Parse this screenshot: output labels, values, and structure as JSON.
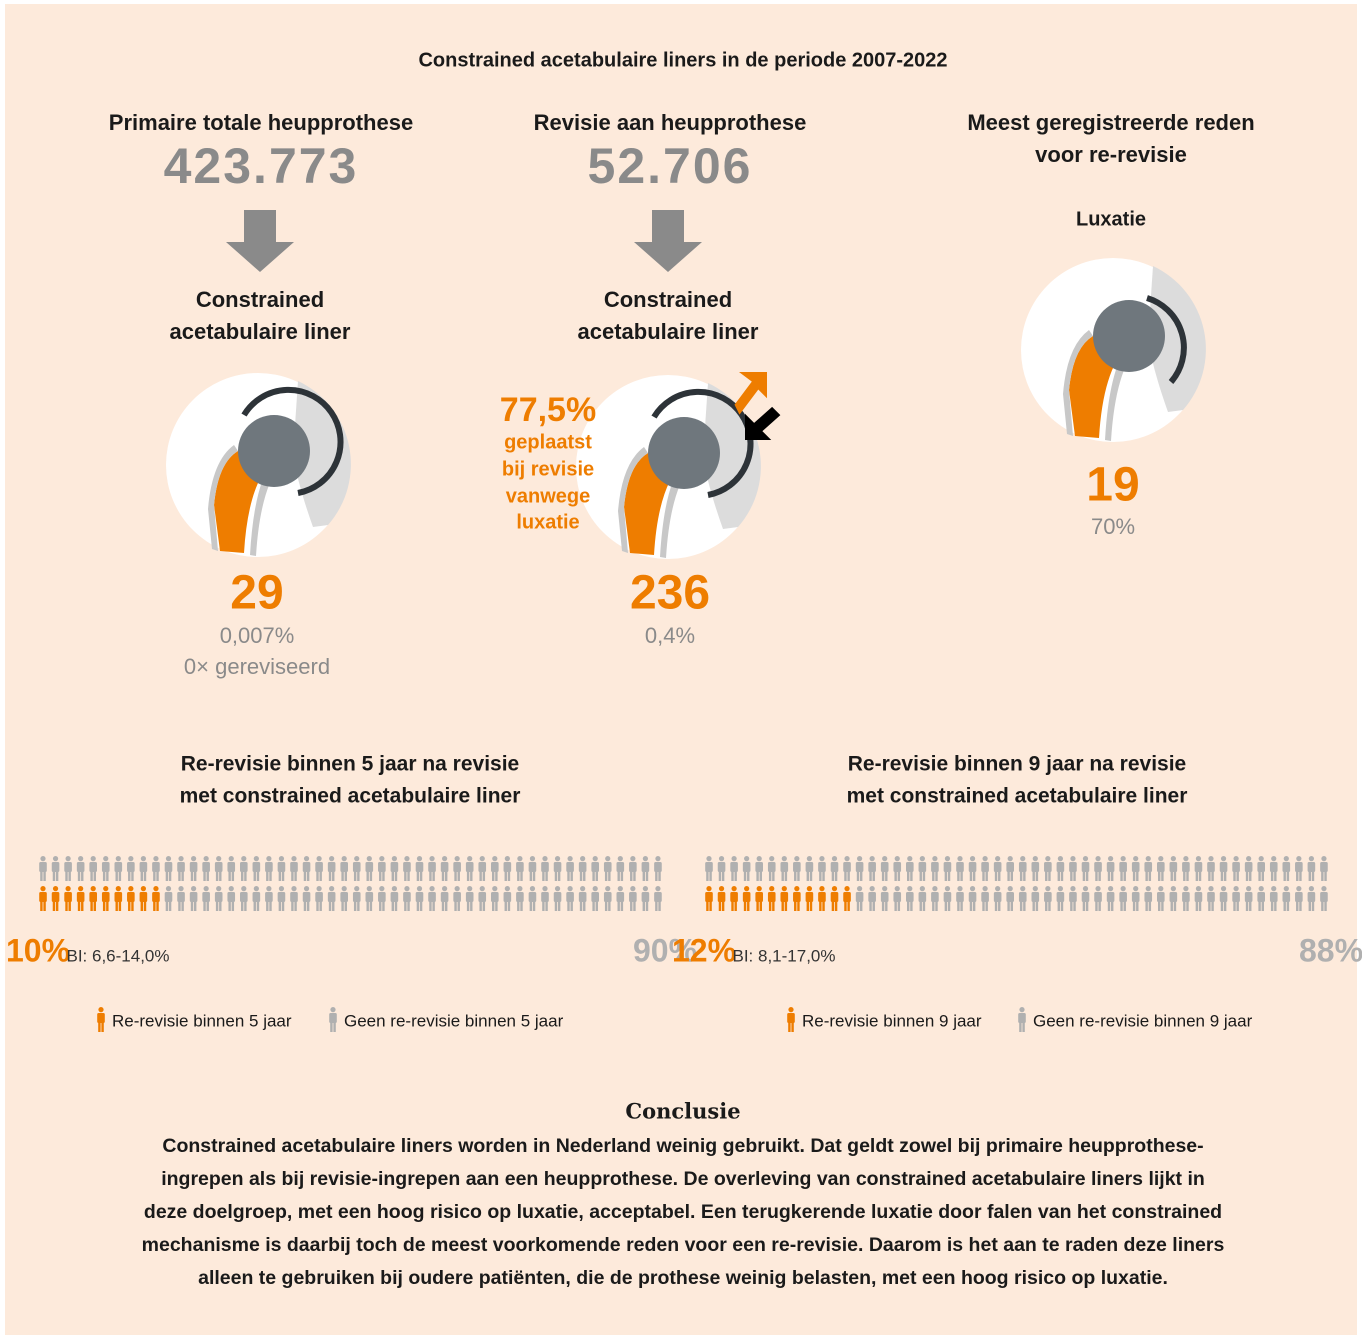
{
  "title": "Constrained acetabulaire liners in de periode 2007-2022",
  "columns": [
    {
      "heading_lines": [
        "Primaire totale heupprothese"
      ],
      "total": "423.773",
      "label_lines": [
        "Constrained",
        "acetabulaire liner"
      ],
      "count": "29",
      "stats": [
        "0,007%",
        "0× gereviseerd"
      ]
    },
    {
      "heading_lines": [
        "Revisie aan heupprothese"
      ],
      "total": "52.706",
      "label_lines": [
        "Constrained",
        "acetabulaire liner"
      ],
      "count": "236",
      "stats": [
        "0,4%"
      ],
      "callout": {
        "value": "77,5%",
        "lines": [
          "geplaatst",
          "bij revisie",
          "vanwege",
          "luxatie"
        ]
      }
    },
    {
      "heading_lines": [
        "Meest geregistreerde reden",
        "voor re-revisie"
      ],
      "reason": "Luxatie",
      "count": "19",
      "stats": [
        "70%"
      ]
    }
  ],
  "waffles": [
    {
      "heading_lines": [
        "Re-revisie binnen 5 jaar na revisie",
        "met constrained acetabulaire liner"
      ],
      "value": 10,
      "value_label": "10%",
      "ci": "BI: 6,6-14,0%",
      "rest_value": 90,
      "rest_label": "90%",
      "legend": [
        "Re-revisie binnen 5 jaar",
        "Geen re-revisie binnen 5 jaar"
      ]
    },
    {
      "heading_lines": [
        "Re-revisie binnen 9 jaar na revisie",
        "met constrained acetabulaire liner"
      ],
      "value": 12,
      "value_label": "12%",
      "ci": "BI: 8,1-17,0%",
      "rest_value": 88,
      "rest_label": "88%",
      "legend": [
        "Re-revisie binnen 9 jaar",
        "Geen re-revisie binnen 9 jaar"
      ]
    }
  ],
  "conclusion": {
    "heading": "Conclusie",
    "lines": [
      "Constrained acetabulaire liners worden in Nederland weinig gebruikt. Dat geldt zowel bij primaire heupprothese-",
      "ingrepen als bij revisie-ingrepen aan een heupprothese. De overleving van constrained acetabulaire liners lijkt in",
      "deze doelgroep, met een hoog risico op luxatie, acceptabel. Een terugkerende luxatie door falen van het constrained",
      "mechanisme is daarbij toch de meest voorkomende reden voor een re-revisie. Daarom is het aan te raden deze liners",
      "alleen te gebruiken bij oudere patiënten, die de prothese weinig belasten, met een hoog risico op luxatie."
    ]
  }
}
